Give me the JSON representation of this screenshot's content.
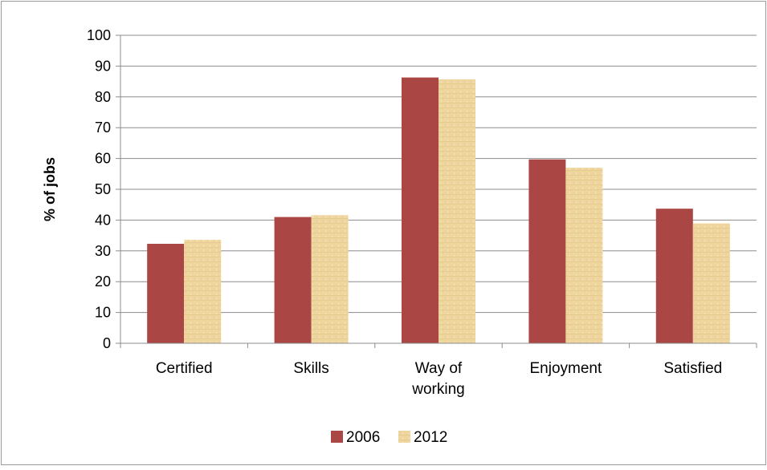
{
  "chart_data": {
    "type": "bar",
    "title": "",
    "xlabel": "",
    "ylabel": "% of jobs",
    "ylim": [
      0,
      100
    ],
    "yticks": [
      0,
      10,
      20,
      30,
      40,
      50,
      60,
      70,
      80,
      90,
      100
    ],
    "grid": "horizontal",
    "legend_position": "bottom",
    "categories": [
      "Certified",
      "Skills",
      "Way of working",
      "Enjoyment",
      "Satisfied"
    ],
    "series": [
      {
        "name": "2006",
        "color": "#AA4643",
        "values": [
          32.3,
          41.0,
          86.3,
          59.7,
          43.7
        ]
      },
      {
        "name": "2012",
        "color": "#EED59E",
        "values": [
          33.6,
          41.6,
          85.7,
          57.0,
          38.9
        ]
      }
    ]
  }
}
